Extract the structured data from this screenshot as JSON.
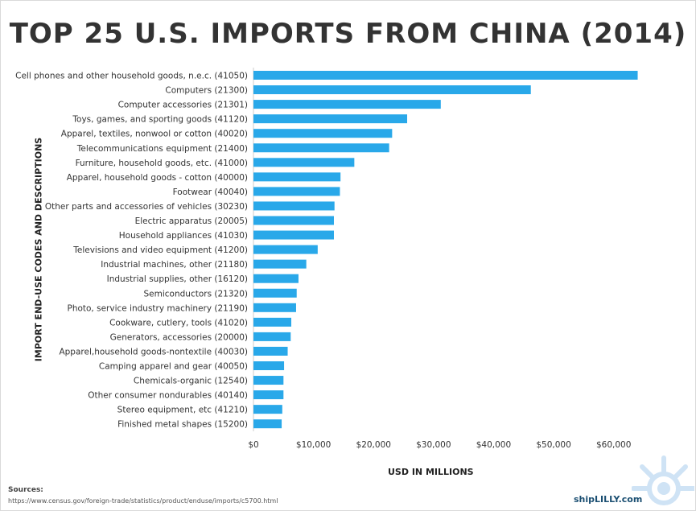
{
  "title": "TOP 25 U.S. IMPORTS FROM CHINA (2014)",
  "chart_data": {
    "type": "bar",
    "orientation": "horizontal",
    "title": "TOP 25 U.S. IMPORTS FROM CHINA (2014)",
    "xlabel": "USD IN MILLIONS",
    "ylabel": "IMPORT END-USE CODES AND DESCRIPTIONS",
    "xlim": [
      0,
      65000
    ],
    "xticks": [
      0,
      10000,
      20000,
      30000,
      40000,
      50000,
      60000
    ],
    "xtick_labels": [
      "$0",
      "$10,000",
      "$20,000",
      "$30,000",
      "$40,000",
      "$50,000",
      "$60,000"
    ],
    "grid": false,
    "bar_color": "#29a8e9",
    "categories": [
      "Cell phones and other household goods, n.e.c. (41050)",
      "Computers (21300)",
      "Computer accessories (21301)",
      "Toys, games, and sporting goods (41120)",
      "Apparel, textiles, nonwool or cotton (40020)",
      "Telecommunications equipment (21400)",
      "Furniture, household goods, etc. (41000)",
      "Apparel, household goods - cotton (40000)",
      "Footwear (40040)",
      "Other parts and accessories of vehicles (30230)",
      "Electric apparatus (20005)",
      "Household appliances (41030)",
      "Televisions and video equipment (41200)",
      "Industrial machines, other (21180)",
      "Industrial supplies, other (16120)",
      "Semiconductors (21320)",
      "Photo, service industry machinery (21190)",
      "Cookware, cutlery, tools (41020)",
      "Generators, accessories (20000)",
      "Apparel,household goods-nontextile (40030)",
      "Camping apparel and gear (40050)",
      "Chemicals-organic (12540)",
      "Other consumer nondurables (40140)",
      "Stereo equipment, etc (41210)",
      "Finished metal shapes (15200)"
    ],
    "values": [
      64000,
      46200,
      31200,
      25600,
      23100,
      22600,
      16800,
      14500,
      14400,
      13500,
      13400,
      13400,
      10700,
      8800,
      7500,
      7200,
      7100,
      6300,
      6200,
      5700,
      5100,
      5000,
      5000,
      4800,
      4700
    ]
  },
  "footer": {
    "sources_label": "Sources:",
    "sources_url": "https://www.census.gov/foreign-trade/statistics/product/enduse/imports/c5700.html",
    "brand": "shipLILLY.com"
  },
  "logo": {
    "icon": "ship-wheel-icon",
    "color": "#cfe3f5"
  }
}
